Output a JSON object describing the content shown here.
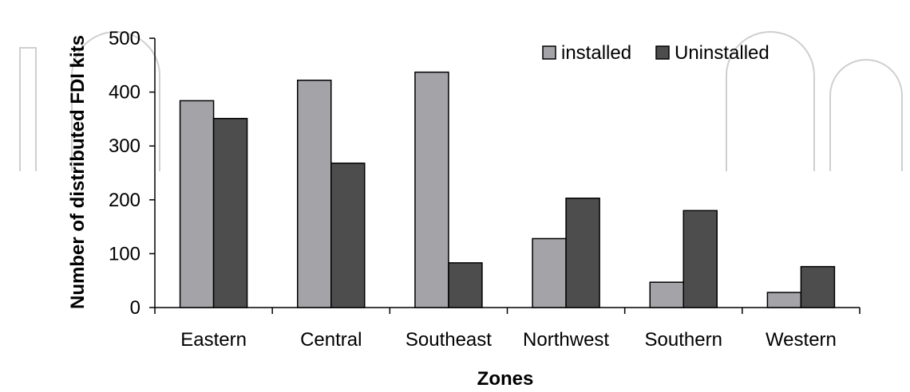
{
  "chart_data": {
    "type": "bar",
    "title": "",
    "xlabel": "Zones",
    "ylabel": "Number of distributed FDI kits",
    "categories": [
      "Eastern",
      "Central",
      "Southeast",
      "Northwest",
      "Southern",
      "Western"
    ],
    "series": [
      {
        "name": "installed",
        "color": "#a3a3a8",
        "values": [
          384,
          422,
          437,
          128,
          47,
          28
        ]
      },
      {
        "name": "Uninstalled",
        "color": "#4d4d4d",
        "values": [
          351,
          268,
          83,
          203,
          180,
          76
        ]
      }
    ],
    "ylim": [
      0,
      500
    ],
    "yticks": [
      "0",
      "100",
      "200",
      "300",
      "400",
      "500"
    ],
    "grid": false,
    "legend_position": "top-right"
  }
}
